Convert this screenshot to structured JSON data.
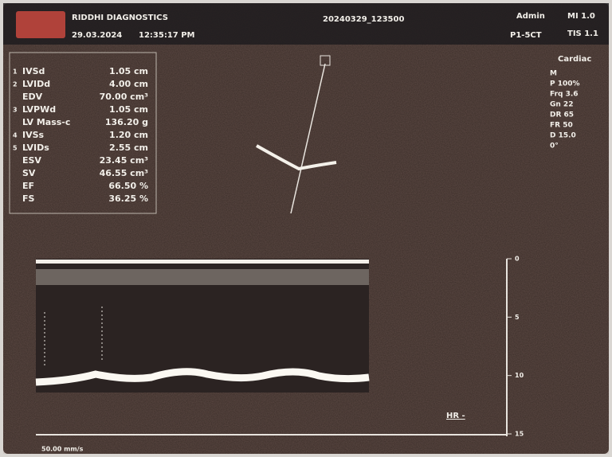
{
  "header": {
    "brand": "RIDDHI DIAGNOSTICS",
    "date": "29.03.2024",
    "time": "12:35:17 PM",
    "study_id": "20240329_123500",
    "user": "Admin",
    "mi": "MI 1.0",
    "probe": "P1-5CT",
    "tis": "TIS 1.1"
  },
  "measurements": {
    "rows": [
      {
        "index": "1",
        "name": "IVSd",
        "value": "1.05 cm"
      },
      {
        "index": "2",
        "name": "LVIDd",
        "value": "4.00 cm"
      },
      {
        "index": null,
        "name": "EDV",
        "value": "70.00 cm³"
      },
      {
        "index": "3",
        "name": "LVPWd",
        "value": "1.05 cm"
      },
      {
        "index": null,
        "name": "LV Mass-c",
        "value": "136.20 g"
      },
      {
        "index": "4",
        "name": "IVSs",
        "value": "1.20 cm"
      },
      {
        "index": "5",
        "name": "LVIDs",
        "value": "2.55 cm"
      },
      {
        "index": null,
        "name": "ESV",
        "value": "23.45 cm³"
      },
      {
        "index": null,
        "name": "SV",
        "value": "46.55 cm³"
      },
      {
        "index": null,
        "name": "EF",
        "value": "66.50 %"
      },
      {
        "index": null,
        "name": "FS",
        "value": "36.25 %"
      }
    ]
  },
  "settings": {
    "mode": "Cardiac",
    "items": [
      "M",
      "P 100%",
      "Frq 3.6",
      "Gn 22",
      "DR 65",
      "FR 50",
      "D 15.0",
      "0°"
    ]
  },
  "depth_scale": [
    "0",
    "5",
    "10",
    "15"
  ],
  "hr_label": "HR -",
  "sweep_speed": "50.00 mm/s"
}
